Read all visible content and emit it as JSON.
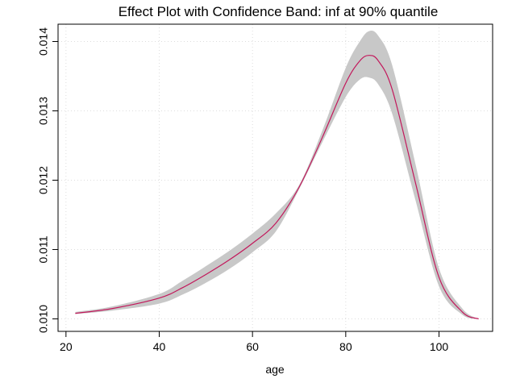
{
  "chart_data": {
    "type": "line",
    "title": "Effect Plot with Confidence Band: inf at 90% quantile",
    "xlabel": "age",
    "ylabel": "",
    "xlim": [
      18.3,
      111.5
    ],
    "ylim": [
      0.00982,
      0.01425
    ],
    "grid": true,
    "x_ticks": [
      20,
      40,
      60,
      80,
      100
    ],
    "x_tick_labels": [
      "20",
      "40",
      "60",
      "80",
      "100"
    ],
    "y_ticks": [
      0.01,
      0.011,
      0.012,
      0.013,
      0.014
    ],
    "y_tick_labels": [
      "0.010",
      "0.011",
      "0.012",
      "0.013",
      "0.014"
    ],
    "colors": {
      "line": "#C2185B",
      "band": "#C8C8C8",
      "grid": "#DDDDDD"
    },
    "series": [
      {
        "x": [
          22,
          30,
          40,
          45,
          50,
          55,
          60,
          65,
          70,
          75,
          80,
          83,
          85,
          87,
          90,
          95,
          100,
          105,
          108.5
        ],
        "values": [
          0.01008,
          0.01015,
          0.0103,
          0.01045,
          0.01064,
          0.01085,
          0.01109,
          0.01138,
          0.0119,
          0.01262,
          0.0134,
          0.01372,
          0.0138,
          0.01372,
          0.0133,
          0.01195,
          0.0106,
          0.0101,
          0.01
        ],
        "lower": [
          0.01007,
          0.01012,
          0.01022,
          0.01035,
          0.01052,
          0.01072,
          0.01096,
          0.01126,
          0.01187,
          0.01255,
          0.0132,
          0.01345,
          0.01348,
          0.01338,
          0.01295,
          0.0117,
          0.01047,
          0.01006,
          0.01
        ],
        "upper": [
          0.0101,
          0.01018,
          0.01036,
          0.01055,
          0.01076,
          0.01098,
          0.01123,
          0.01152,
          0.01193,
          0.01272,
          0.01362,
          0.014,
          0.01415,
          0.01408,
          0.01365,
          0.01222,
          0.01073,
          0.01015,
          0.01
        ]
      }
    ]
  }
}
